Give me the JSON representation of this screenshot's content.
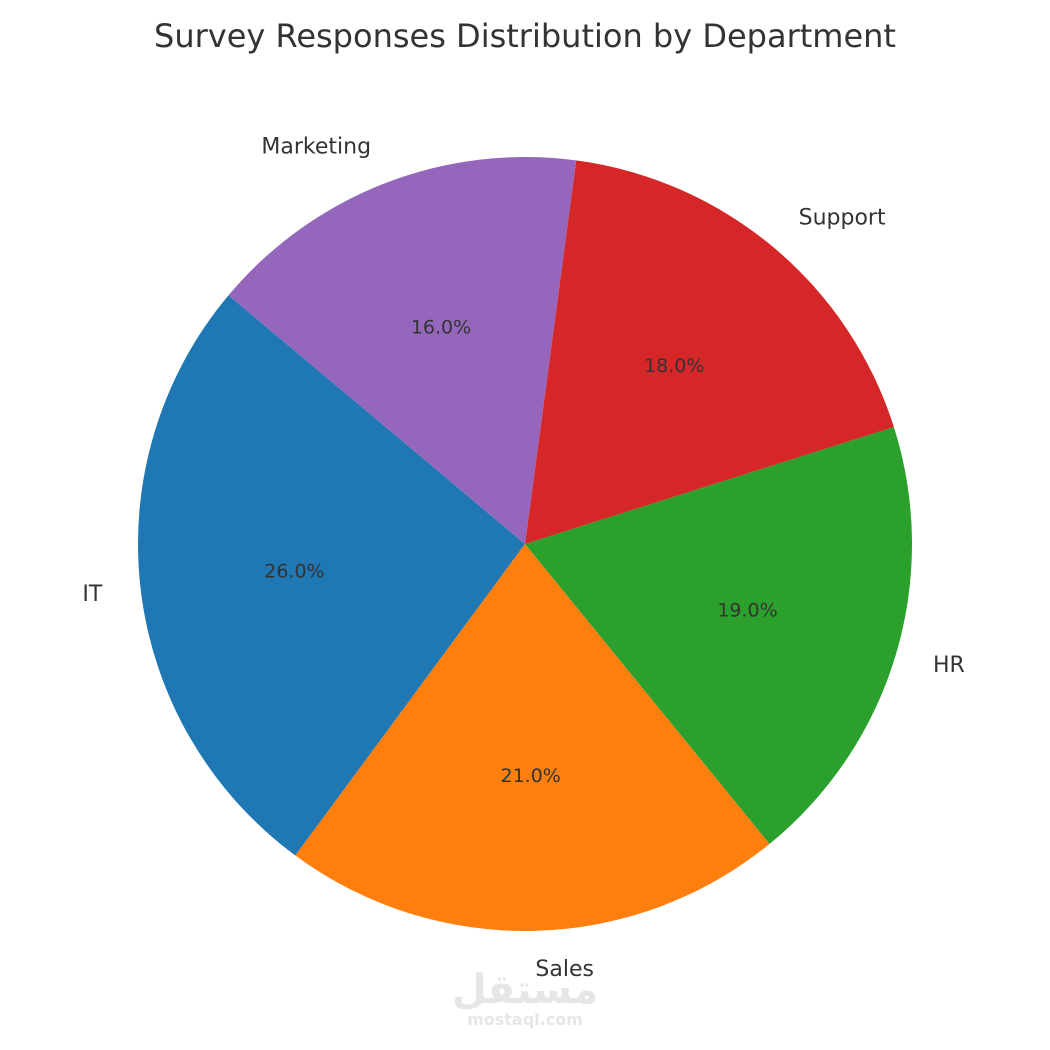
{
  "chart_data": {
    "type": "pie",
    "title": "Survey Responses Distribution by Department",
    "categories": [
      "IT",
      "Sales",
      "HR",
      "Support",
      "Marketing"
    ],
    "values": [
      26.0,
      21.0,
      19.0,
      18.0,
      16.0
    ],
    "percent_labels": [
      "26.0%",
      "21.0%",
      "19.0%",
      "18.0%",
      "16.0%"
    ],
    "colors": [
      "#1f77b4",
      "#ff7f0e",
      "#2ca02c",
      "#d62728",
      "#9467bd"
    ],
    "start_angle_deg": 140,
    "direction": "counterclockwise"
  },
  "watermark": {
    "arabic": "مستقل",
    "url": "mostaql.com"
  }
}
